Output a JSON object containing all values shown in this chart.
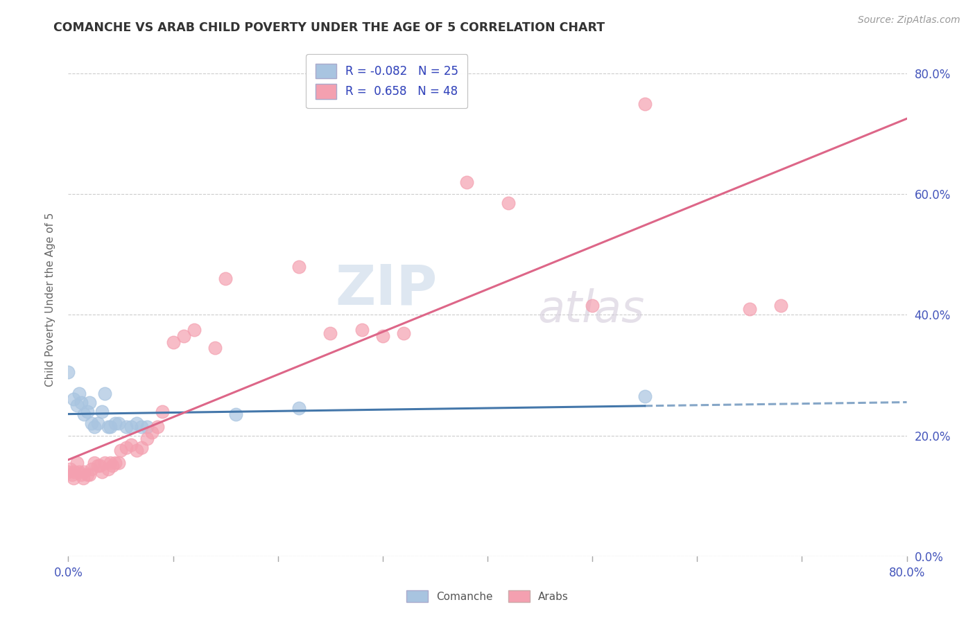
{
  "title": "COMANCHE VS ARAB CHILD POVERTY UNDER THE AGE OF 5 CORRELATION CHART",
  "source": "Source: ZipAtlas.com",
  "ylabel": "Child Poverty Under the Age of 5",
  "xlim": [
    0.0,
    0.8
  ],
  "ylim": [
    0.0,
    0.85
  ],
  "comanche_color": "#a8c4e0",
  "arabs_color": "#f4a0b0",
  "comanche_line_color": "#4477aa",
  "arabs_line_color": "#dd6688",
  "watermark_line1": "ZIP",
  "watermark_line2": "atlas",
  "comanche_points": [
    [
      0.0,
      0.305
    ],
    [
      0.005,
      0.26
    ],
    [
      0.008,
      0.25
    ],
    [
      0.01,
      0.27
    ],
    [
      0.012,
      0.255
    ],
    [
      0.015,
      0.235
    ],
    [
      0.018,
      0.24
    ],
    [
      0.02,
      0.255
    ],
    [
      0.022,
      0.22
    ],
    [
      0.025,
      0.215
    ],
    [
      0.028,
      0.22
    ],
    [
      0.032,
      0.24
    ],
    [
      0.035,
      0.27
    ],
    [
      0.038,
      0.215
    ],
    [
      0.04,
      0.215
    ],
    [
      0.045,
      0.22
    ],
    [
      0.048,
      0.22
    ],
    [
      0.055,
      0.215
    ],
    [
      0.06,
      0.215
    ],
    [
      0.065,
      0.22
    ],
    [
      0.07,
      0.215
    ],
    [
      0.075,
      0.215
    ],
    [
      0.16,
      0.235
    ],
    [
      0.22,
      0.245
    ],
    [
      0.55,
      0.265
    ]
  ],
  "arabs_points": [
    [
      0.0,
      0.14
    ],
    [
      0.002,
      0.145
    ],
    [
      0.004,
      0.135
    ],
    [
      0.005,
      0.13
    ],
    [
      0.006,
      0.14
    ],
    [
      0.008,
      0.155
    ],
    [
      0.01,
      0.14
    ],
    [
      0.012,
      0.135
    ],
    [
      0.014,
      0.13
    ],
    [
      0.015,
      0.14
    ],
    [
      0.018,
      0.135
    ],
    [
      0.02,
      0.135
    ],
    [
      0.022,
      0.145
    ],
    [
      0.025,
      0.155
    ],
    [
      0.028,
      0.15
    ],
    [
      0.03,
      0.15
    ],
    [
      0.032,
      0.14
    ],
    [
      0.035,
      0.155
    ],
    [
      0.038,
      0.145
    ],
    [
      0.04,
      0.155
    ],
    [
      0.042,
      0.15
    ],
    [
      0.045,
      0.155
    ],
    [
      0.048,
      0.155
    ],
    [
      0.05,
      0.175
    ],
    [
      0.055,
      0.18
    ],
    [
      0.06,
      0.185
    ],
    [
      0.065,
      0.175
    ],
    [
      0.07,
      0.18
    ],
    [
      0.075,
      0.195
    ],
    [
      0.08,
      0.205
    ],
    [
      0.085,
      0.215
    ],
    [
      0.09,
      0.24
    ],
    [
      0.1,
      0.355
    ],
    [
      0.11,
      0.365
    ],
    [
      0.12,
      0.375
    ],
    [
      0.14,
      0.345
    ],
    [
      0.15,
      0.46
    ],
    [
      0.22,
      0.48
    ],
    [
      0.25,
      0.37
    ],
    [
      0.28,
      0.375
    ],
    [
      0.3,
      0.365
    ],
    [
      0.32,
      0.37
    ],
    [
      0.38,
      0.62
    ],
    [
      0.42,
      0.585
    ],
    [
      0.5,
      0.415
    ],
    [
      0.55,
      0.75
    ],
    [
      0.65,
      0.41
    ],
    [
      0.68,
      0.415
    ]
  ],
  "comanche_R": -0.082,
  "arabs_R": 0.658,
  "comanche_N": 25,
  "arabs_N": 48,
  "background_color": "#ffffff",
  "grid_color": "#cccccc"
}
